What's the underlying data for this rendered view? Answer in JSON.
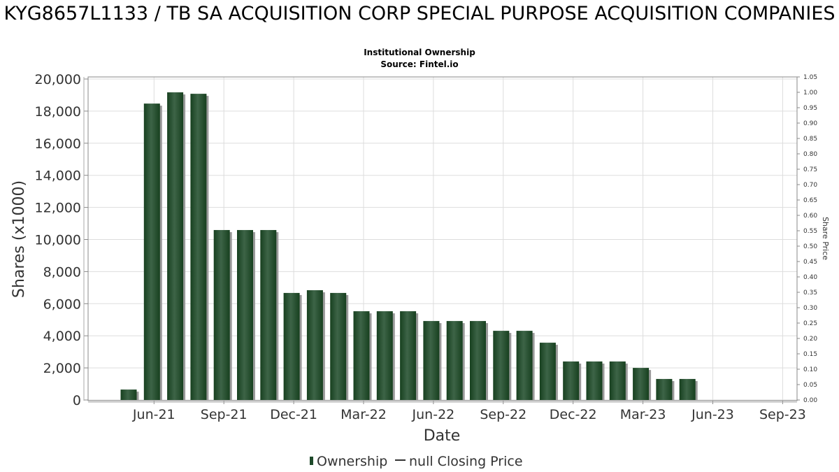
{
  "chart_data": {
    "type": "bar",
    "title": "KYG8657L1133 / TB SA ACQUISITION CORP SPECIAL PURPOSE ACQUISITION COMPANIES",
    "subtitle": "Institutional Ownership",
    "source": "Source: Fintel.io",
    "xlabel": "Date",
    "ylabel": "Shares (x1000)",
    "y2label": "Share Price",
    "ylim": [
      0,
      20000
    ],
    "y2lim": [
      0,
      1.05
    ],
    "grid": true,
    "legend_position": "bottom",
    "legend": [
      {
        "name": "Ownership",
        "color": "#1e4a2a"
      },
      {
        "name": "null Closing Price",
        "color": "#333333"
      }
    ],
    "yticks": [
      "0",
      "2,000",
      "4,000",
      "6,000",
      "8,000",
      "10,000",
      "12,000",
      "14,000",
      "16,000",
      "18,000",
      "20,000"
    ],
    "y2ticks": [
      "0.00",
      "0.05",
      "0.10",
      "0.15",
      "0.20",
      "0.25",
      "0.30",
      "0.35",
      "0.40",
      "0.45",
      "0.50",
      "0.55",
      "0.60",
      "0.65",
      "0.70",
      "0.75",
      "0.80",
      "0.85",
      "0.90",
      "0.95",
      "1.00",
      "1.05"
    ],
    "xticks": [
      "Jun-21",
      "Sep-21",
      "Dec-21",
      "Mar-22",
      "Jun-22",
      "Sep-22",
      "Dec-22",
      "Mar-23",
      "Jun-23",
      "Sep-23"
    ],
    "categories": [
      "May-21",
      "Jun-21",
      "Jul-21",
      "Aug-21",
      "Sep-21",
      "Oct-21",
      "Nov-21",
      "Dec-21",
      "Jan-22",
      "Feb-22",
      "Mar-22",
      "Apr-22",
      "May-22",
      "Jun-22",
      "Jul-22",
      "Aug-22",
      "Sep-22",
      "Oct-22",
      "Nov-22",
      "Dec-22",
      "Jan-23",
      "Feb-23",
      "Mar-23",
      "Apr-23",
      "May-23"
    ],
    "series": [
      {
        "name": "Ownership",
        "values": [
          650,
          18470,
          19170,
          19080,
          10590,
          10590,
          10590,
          6670,
          6840,
          6670,
          5530,
          5530,
          5530,
          4920,
          4920,
          4920,
          4310,
          4310,
          3570,
          2400,
          2400,
          2400,
          2000,
          1310,
          1310
        ]
      }
    ]
  }
}
